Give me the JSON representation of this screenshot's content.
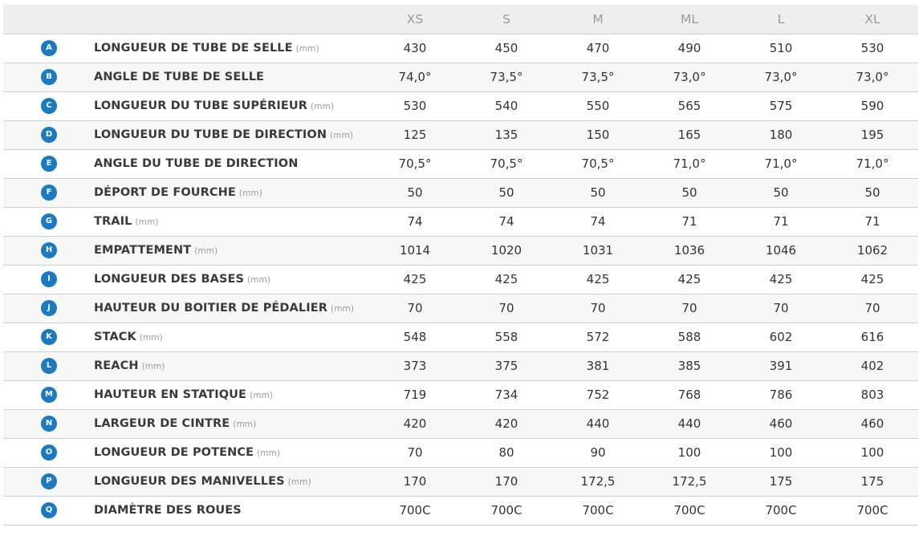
{
  "header": {
    "sizes": [
      "XS",
      "S",
      "M",
      "ML",
      "L",
      "XL"
    ]
  },
  "colors": {
    "badge": "#1a7ac2",
    "header_bg": "#eeeeee",
    "header_text": "#9a9a9a",
    "row_alt_bg": "#f7f7f7",
    "border": "#cfcfcf"
  },
  "rows": [
    {
      "letter": "A",
      "label": "LONGUEUR DE TUBE DE SELLE",
      "unit": "(mm)",
      "values": [
        "430",
        "450",
        "470",
        "490",
        "510",
        "530"
      ]
    },
    {
      "letter": "B",
      "label": "ANGLE DE TUBE DE SELLE",
      "unit": "",
      "values": [
        "74,0°",
        "73,5°",
        "73,5°",
        "73,0°",
        "73,0°",
        "73,0°"
      ]
    },
    {
      "letter": "C",
      "label": "LONGUEUR DU TUBE SUPÉRIEUR",
      "unit": "(mm)",
      "values": [
        "530",
        "540",
        "550",
        "565",
        "575",
        "590"
      ]
    },
    {
      "letter": "D",
      "label": "LONGUEUR DU TUBE DE DIRECTION",
      "unit": "(mm)",
      "values": [
        "125",
        "135",
        "150",
        "165",
        "180",
        "195"
      ]
    },
    {
      "letter": "E",
      "label": "ANGLE DU TUBE DE DIRECTION",
      "unit": "",
      "values": [
        "70,5°",
        "70,5°",
        "70,5°",
        "71,0°",
        "71,0°",
        "71,0°"
      ]
    },
    {
      "letter": "F",
      "label": "DÉPORT DE FOURCHE",
      "unit": "(mm)",
      "values": [
        "50",
        "50",
        "50",
        "50",
        "50",
        "50"
      ]
    },
    {
      "letter": "G",
      "label": "TRAIL",
      "unit": "(mm)",
      "values": [
        "74",
        "74",
        "74",
        "71",
        "71",
        "71"
      ]
    },
    {
      "letter": "H",
      "label": "EMPATTEMENT",
      "unit": "(mm)",
      "values": [
        "1014",
        "1020",
        "1031",
        "1036",
        "1046",
        "1062"
      ]
    },
    {
      "letter": "I",
      "label": "LONGUEUR DES BASES",
      "unit": "(mm)",
      "values": [
        "425",
        "425",
        "425",
        "425",
        "425",
        "425"
      ]
    },
    {
      "letter": "J",
      "label": "HAUTEUR DU BOITIER DE PÉDALIER",
      "unit": "(mm)",
      "values": [
        "70",
        "70",
        "70",
        "70",
        "70",
        "70"
      ]
    },
    {
      "letter": "K",
      "label": "STACK",
      "unit": "(mm)",
      "values": [
        "548",
        "558",
        "572",
        "588",
        "602",
        "616"
      ]
    },
    {
      "letter": "L",
      "label": "REACH",
      "unit": "(mm)",
      "values": [
        "373",
        "375",
        "381",
        "385",
        "391",
        "402"
      ]
    },
    {
      "letter": "M",
      "label": "HAUTEUR EN STATIQUE",
      "unit": "(mm)",
      "values": [
        "719",
        "734",
        "752",
        "768",
        "786",
        "803"
      ]
    },
    {
      "letter": "N",
      "label": "LARGEUR DE CINTRE",
      "unit": "(mm)",
      "values": [
        "420",
        "420",
        "440",
        "440",
        "460",
        "460"
      ]
    },
    {
      "letter": "O",
      "label": "LONGUEUR DE POTENCE",
      "unit": "(mm)",
      "values": [
        "70",
        "80",
        "90",
        "100",
        "100",
        "100"
      ]
    },
    {
      "letter": "P",
      "label": "LONGUEUR DES MANIVELLES",
      "unit": "(mm)",
      "values": [
        "170",
        "170",
        "172,5",
        "172,5",
        "175",
        "175"
      ]
    },
    {
      "letter": "Q",
      "label": "DIAMÈTRE DES ROUES",
      "unit": "",
      "values": [
        "700C",
        "700C",
        "700C",
        "700C",
        "700C",
        "700C"
      ]
    }
  ]
}
